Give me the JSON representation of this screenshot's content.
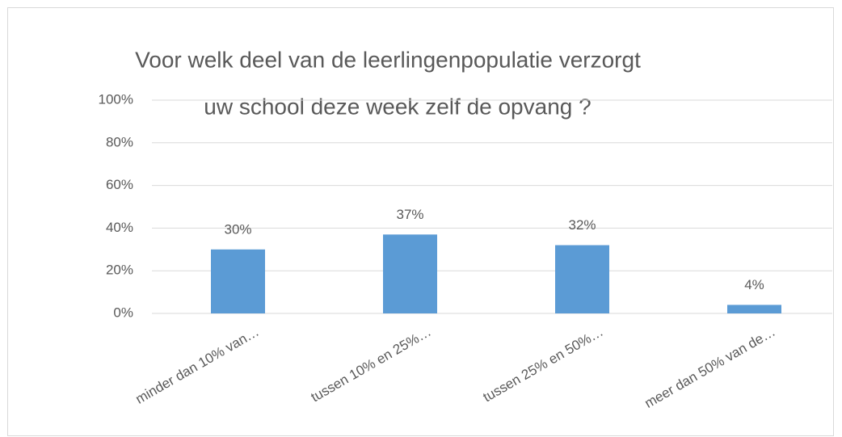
{
  "chart_data": {
    "type": "bar",
    "title": [
      "Voor welk deel van de leerlingenpopulatie verzorgt",
      "uw school deze week zelf de opvang ?"
    ],
    "categories": [
      "minder dan 10% van…",
      "tussen 10% en 25%…",
      "tussen 25% en 50%…",
      "meer dan 50% van de…"
    ],
    "values": [
      30,
      37,
      32,
      4
    ],
    "value_labels": [
      "30%",
      "37%",
      "32%",
      "4%"
    ],
    "color": "#5b9bd5",
    "ylim": [
      0,
      100
    ],
    "yticks": [
      {
        "value": 0,
        "label": "0%"
      },
      {
        "value": 20,
        "label": "20%"
      },
      {
        "value": 40,
        "label": "40%"
      },
      {
        "value": 60,
        "label": "60%"
      },
      {
        "value": 80,
        "label": "80%"
      },
      {
        "value": 100,
        "label": "100%"
      }
    ],
    "grid": true
  }
}
